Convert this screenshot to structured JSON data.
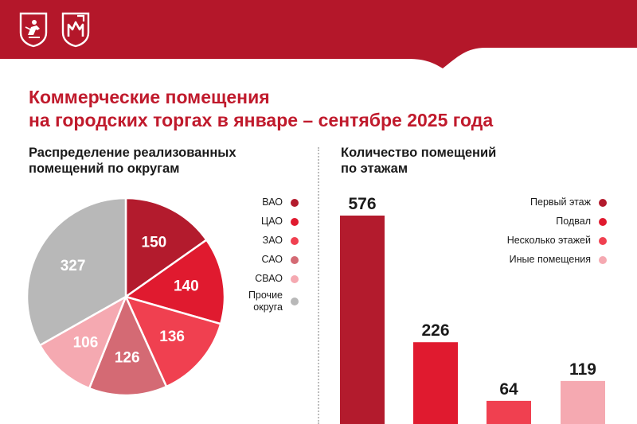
{
  "colors": {
    "brand": "#b4172a",
    "title": "#c01a2c",
    "pie_slices": [
      "#b31b2d",
      "#e01a2f",
      "#f04050",
      "#d46a74",
      "#f5a9b1",
      "#b8b8b8"
    ],
    "bars": [
      "#b31b2d",
      "#e01a2f",
      "#f04050",
      "#f5a9b1"
    ]
  },
  "header": {
    "logos": [
      "moscow-coat-of-arms-icon",
      "city-property-logo-icon"
    ],
    "title_line1": "Коммерческие помещения",
    "title_line2": "на городских торгах в январе – сентябре 2025 года"
  },
  "chart_data": [
    {
      "type": "pie",
      "title_line1": "Распределение реализованных",
      "title_line2": "помещений по округам",
      "categories": [
        "ВАО",
        "ЦАО",
        "ЗАО",
        "САО",
        "СВАО",
        "Прочие округа"
      ],
      "legend_lines": [
        [
          "ВАО"
        ],
        [
          "ЦАО"
        ],
        [
          "ЗАО"
        ],
        [
          "САО"
        ],
        [
          "СВАО"
        ],
        [
          "Прочие",
          "округа"
        ]
      ],
      "values": [
        150,
        140,
        136,
        126,
        106,
        327
      ],
      "legend_placement": "right"
    },
    {
      "type": "bar",
      "title_line1": "Количество помещений",
      "title_line2": "по этажам",
      "categories": [
        "Первый этаж",
        "Подвал",
        "Несколько этажей",
        "Иные помещения"
      ],
      "legend_lines": [
        [
          "Первый этаж"
        ],
        [
          "Подвал"
        ],
        [
          "Несколько этажей"
        ],
        [
          "Иные помещения"
        ]
      ],
      "values": [
        576,
        226,
        64,
        119
      ],
      "ylim": [
        0,
        576
      ],
      "legend_placement": "top-right",
      "grid": false
    }
  ]
}
